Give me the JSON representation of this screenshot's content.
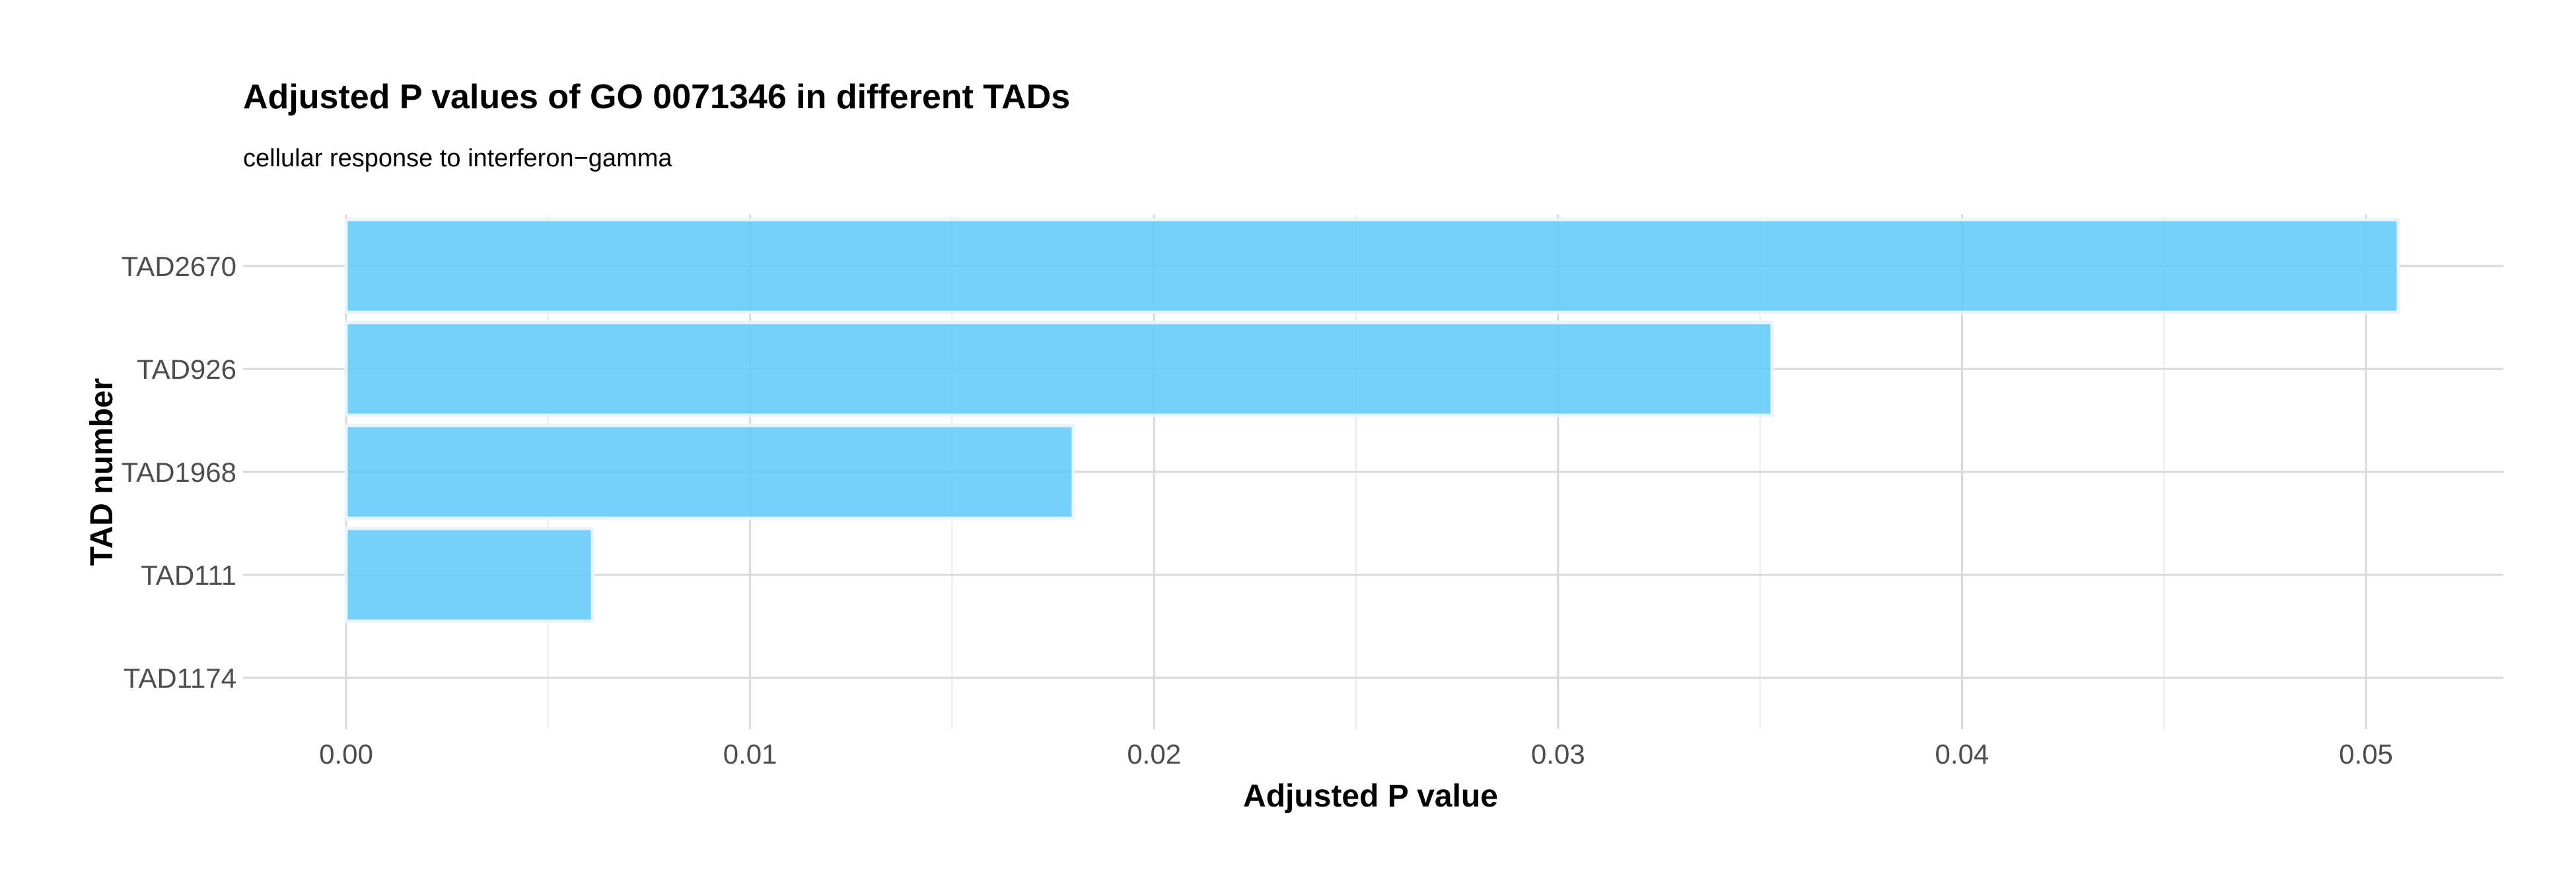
{
  "chart_data": {
    "type": "bar",
    "orientation": "horizontal",
    "title": "Adjusted P values of GO 0071346 in different TADs",
    "subtitle": "cellular response to interferon−gamma",
    "xlabel": "Adjusted P value",
    "ylabel": "TAD number",
    "categories": [
      "TAD2670",
      "TAD926",
      "TAD1968",
      "TAD111",
      "TAD1174"
    ],
    "values": [
      0.0508,
      0.0353,
      0.018,
      0.0061,
      0.0
    ],
    "xlim": [
      -0.00255,
      0.0534
    ],
    "xticks": [
      0.0,
      0.01,
      0.02,
      0.03,
      0.04,
      0.05
    ],
    "xtick_labels": [
      "0.00",
      "0.01",
      "0.02",
      "0.03",
      "0.04",
      "0.05"
    ],
    "bar_color": "#5ec8fb",
    "grid": true,
    "legend": "none"
  }
}
